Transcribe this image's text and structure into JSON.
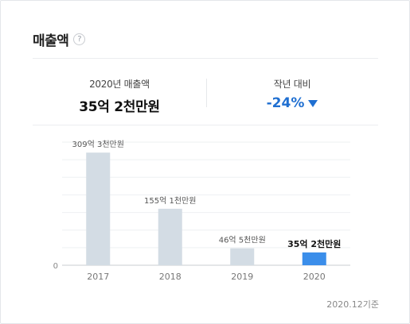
{
  "header": {
    "title": "매출액",
    "help_icon": "?"
  },
  "summary": {
    "label": "2020년 매출액",
    "value": "35억 2천만원",
    "change_label": "작년 대비",
    "change_value": "-24%",
    "change_icon": "triangle-down-icon"
  },
  "chart_data": {
    "type": "bar",
    "categories": [
      "2017",
      "2018",
      "2019",
      "2020"
    ],
    "values": [
      30930,
      15510,
      4650,
      3520
    ],
    "value_labels": [
      "309억 3천만원",
      "155억 1천만원",
      "46억 5천만원",
      "35억 2천만원"
    ],
    "y_tick_labels": [
      "0"
    ],
    "ylim": [
      0,
      33800
    ],
    "grid": true,
    "colors": {
      "default": "#d3dce4",
      "highlight": "#3b8eea"
    },
    "highlight_index": 3
  },
  "footer": {
    "note": "2020.12기준"
  }
}
